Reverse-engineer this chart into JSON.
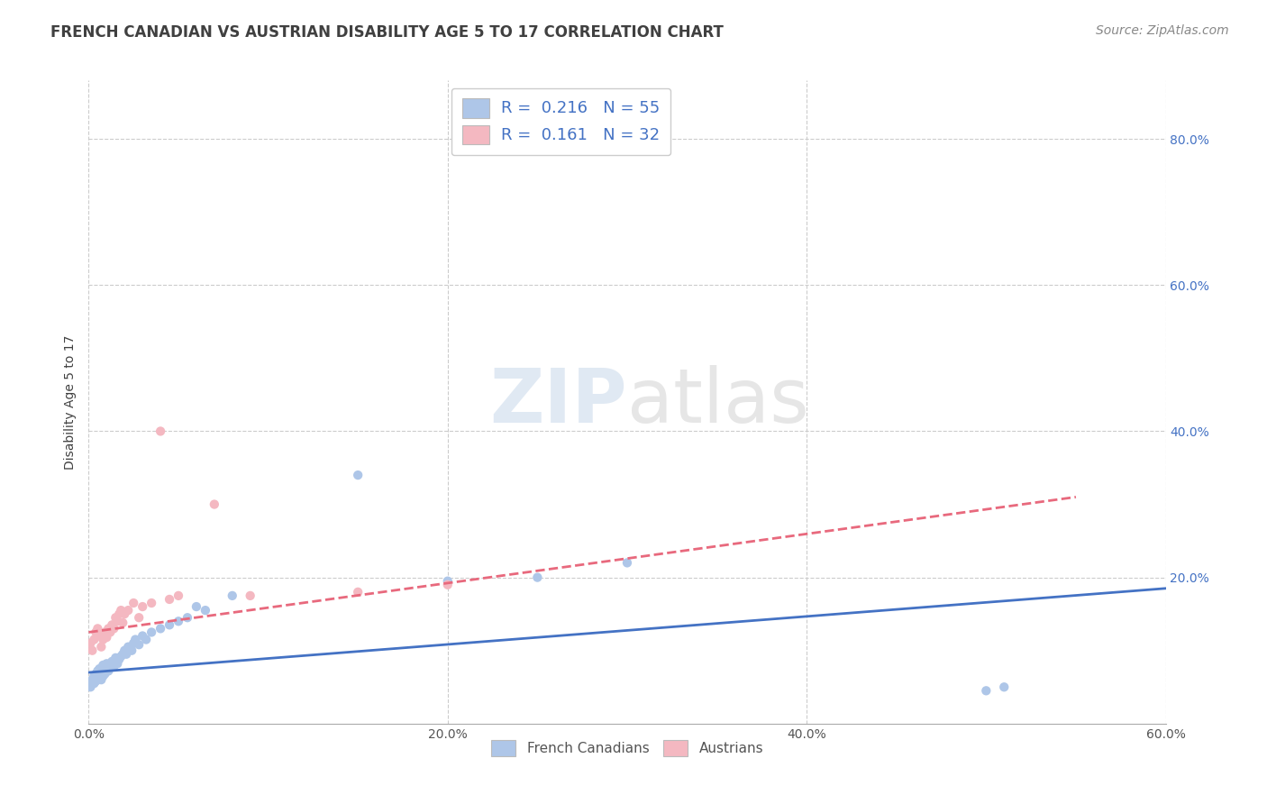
{
  "title": "FRENCH CANADIAN VS AUSTRIAN DISABILITY AGE 5 TO 17 CORRELATION CHART",
  "source_text": "Source: ZipAtlas.com",
  "ylabel": "Disability Age 5 to 17",
  "xlim": [
    0.0,
    0.6
  ],
  "ylim": [
    0.0,
    0.88
  ],
  "xtick_labels": [
    "0.0%",
    "20.0%",
    "40.0%",
    "60.0%"
  ],
  "xtick_values": [
    0.0,
    0.2,
    0.4,
    0.6
  ],
  "ytick_labels": [
    "20.0%",
    "40.0%",
    "60.0%",
    "80.0%"
  ],
  "ytick_values": [
    0.2,
    0.4,
    0.6,
    0.8
  ],
  "legend_entries": [
    {
      "label_r": "R = ",
      "label_rv": "0.216",
      "label_n": "   N = ",
      "label_nv": "55",
      "color": "#aec6e8"
    },
    {
      "label_r": "R = ",
      "label_rv": "0.161",
      "label_n": "   N = ",
      "label_nv": "32",
      "color": "#f4b8c1"
    }
  ],
  "french_canadian_x": [
    0.001,
    0.002,
    0.002,
    0.003,
    0.003,
    0.003,
    0.004,
    0.004,
    0.004,
    0.005,
    0.005,
    0.005,
    0.006,
    0.006,
    0.007,
    0.007,
    0.008,
    0.008,
    0.008,
    0.009,
    0.009,
    0.01,
    0.01,
    0.011,
    0.012,
    0.013,
    0.014,
    0.015,
    0.016,
    0.017,
    0.018,
    0.019,
    0.02,
    0.021,
    0.022,
    0.024,
    0.025,
    0.026,
    0.028,
    0.03,
    0.032,
    0.035,
    0.04,
    0.045,
    0.05,
    0.055,
    0.06,
    0.065,
    0.08,
    0.15,
    0.2,
    0.25,
    0.3,
    0.5,
    0.51
  ],
  "french_canadian_y": [
    0.05,
    0.055,
    0.06,
    0.065,
    0.06,
    0.055,
    0.062,
    0.068,
    0.058,
    0.072,
    0.065,
    0.07,
    0.068,
    0.075,
    0.06,
    0.072,
    0.065,
    0.07,
    0.08,
    0.068,
    0.075,
    0.078,
    0.082,
    0.072,
    0.08,
    0.085,
    0.078,
    0.09,
    0.082,
    0.088,
    0.092,
    0.095,
    0.1,
    0.095,
    0.105,
    0.1,
    0.11,
    0.115,
    0.108,
    0.12,
    0.115,
    0.125,
    0.13,
    0.135,
    0.14,
    0.145,
    0.16,
    0.155,
    0.175,
    0.34,
    0.195,
    0.2,
    0.22,
    0.045,
    0.05
  ],
  "austrian_x": [
    0.001,
    0.002,
    0.003,
    0.004,
    0.005,
    0.006,
    0.007,
    0.008,
    0.009,
    0.01,
    0.011,
    0.012,
    0.013,
    0.014,
    0.015,
    0.016,
    0.017,
    0.018,
    0.019,
    0.02,
    0.022,
    0.025,
    0.028,
    0.03,
    0.035,
    0.04,
    0.045,
    0.05,
    0.07,
    0.09,
    0.15,
    0.2
  ],
  "austrian_y": [
    0.11,
    0.1,
    0.115,
    0.125,
    0.13,
    0.12,
    0.105,
    0.115,
    0.125,
    0.118,
    0.13,
    0.125,
    0.135,
    0.13,
    0.145,
    0.14,
    0.15,
    0.155,
    0.138,
    0.15,
    0.155,
    0.165,
    0.145,
    0.16,
    0.165,
    0.4,
    0.17,
    0.175,
    0.3,
    0.175,
    0.18,
    0.19
  ],
  "fc_line_color": "#4472c4",
  "au_line_color": "#e8697d",
  "fc_scatter_color": "#aec6e8",
  "au_scatter_color": "#f4b8c1",
  "fc_line_x": [
    0.0,
    0.6
  ],
  "fc_line_y": [
    0.07,
    0.185
  ],
  "au_line_x": [
    0.0,
    0.55
  ],
  "au_line_y": [
    0.125,
    0.31
  ],
  "watermark_zip": "ZIP",
  "watermark_atlas": "atlas",
  "background_color": "#ffffff",
  "grid_color": "#cccccc",
  "title_color": "#404040",
  "title_fontsize": 12,
  "axis_fontsize": 10,
  "tick_fontsize": 10,
  "source_fontsize": 10
}
